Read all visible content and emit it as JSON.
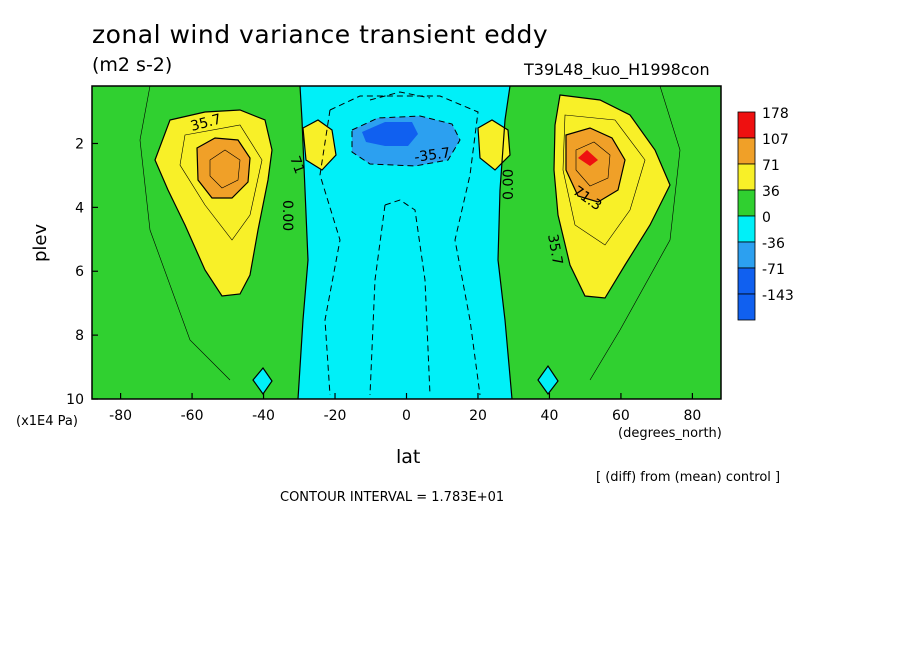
{
  "header": {
    "title": "zonal wind variance transient eddy",
    "units": "(m2 s-2)",
    "run_id": "T39L48_kuo_H1998con"
  },
  "footer": {
    "diff_note": "[ (diff) from (mean) control ]",
    "contour_interval": "CONTOUR INTERVAL = 1.783E+01"
  },
  "colors": {
    "c178": "#ee1010",
    "c107": "#f0a028",
    "c71": "#f8f028",
    "c36": "#30d030",
    "c0": "#00f0f8",
    "cm36": "#2ca0f0",
    "cm71": "#1060f0",
    "cm143": "#1060f0"
  },
  "chart_data": {
    "type": "contour",
    "xlabel": "lat",
    "xunits": "(degrees_north)",
    "ylabel": "plev",
    "yunits": "(x1E4 Pa)",
    "xlim": [
      -88,
      88
    ],
    "ylim": [
      10,
      0.2
    ],
    "xticks": [
      "-80",
      "-60",
      "-40",
      "-20",
      "0",
      "20",
      "40",
      "60",
      "80"
    ],
    "yticks": [
      "2",
      "4",
      "6",
      "8",
      "10"
    ],
    "colorbar_levels": [
      "178",
      "107",
      "71",
      "36",
      "0",
      "-36",
      "-71",
      "-143"
    ],
    "contour_labels": [
      "35.7",
      "71.3",
      "0.00",
      "0.00",
      "35.7",
      "-35.7",
      "71"
    ],
    "features": [
      {
        "name": "SH jet variance maximum",
        "lat": -52,
        "plev": 2.5,
        "value": 107
      },
      {
        "name": "NH jet variance maximum",
        "lat": 50,
        "plev": 2.3,
        "value": 178
      },
      {
        "name": "equatorial upper minimum",
        "lat": 0,
        "plev": 1.7,
        "value": -71
      }
    ]
  }
}
